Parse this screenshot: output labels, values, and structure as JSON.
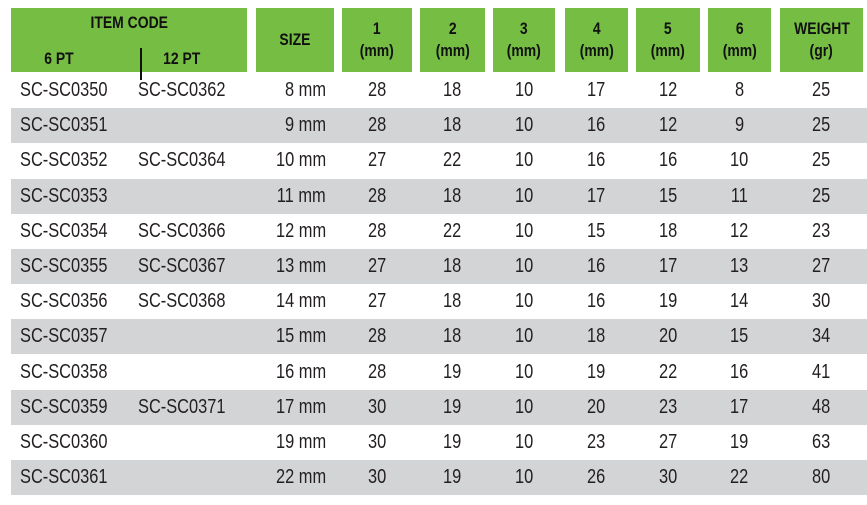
{
  "header": {
    "item_code": "ITEM CODE",
    "pt6": "6 PT",
    "pt12": "12 PT",
    "size": "SIZE",
    "cols": [
      {
        "num": "1",
        "unit": "(mm)"
      },
      {
        "num": "2",
        "unit": "(mm)"
      },
      {
        "num": "3",
        "unit": "(mm)"
      },
      {
        "num": "4",
        "unit": "(mm)"
      },
      {
        "num": "5",
        "unit": "(mm)"
      },
      {
        "num": "6",
        "unit": "(mm)"
      }
    ],
    "weight": "WEIGHT",
    "weight_unit": "(gr)"
  },
  "colors": {
    "header_bg": "#76bd43",
    "alt_row_bg": "#d3d4d6"
  },
  "rows": [
    {
      "pt6": "SC-SC0350",
      "pt12": "SC-SC0362",
      "size": "8 mm",
      "d": [
        "28",
        "18",
        "10",
        "17",
        "12",
        "8"
      ],
      "weight": "25"
    },
    {
      "pt6": "SC-SC0351",
      "pt12": "",
      "size": "9 mm",
      "d": [
        "28",
        "18",
        "10",
        "16",
        "12",
        "9"
      ],
      "weight": "25"
    },
    {
      "pt6": "SC-SC0352",
      "pt12": "SC-SC0364",
      "size": "10 mm",
      "d": [
        "27",
        "22",
        "10",
        "16",
        "16",
        "10"
      ],
      "weight": "25"
    },
    {
      "pt6": "SC-SC0353",
      "pt12": "",
      "size": "11 mm",
      "d": [
        "28",
        "18",
        "10",
        "17",
        "15",
        "11"
      ],
      "weight": "25"
    },
    {
      "pt6": "SC-SC0354",
      "pt12": "SC-SC0366",
      "size": "12 mm",
      "d": [
        "28",
        "22",
        "10",
        "15",
        "18",
        "12"
      ],
      "weight": "23"
    },
    {
      "pt6": "SC-SC0355",
      "pt12": "SC-SC0367",
      "size": "13 mm",
      "d": [
        "27",
        "18",
        "10",
        "16",
        "17",
        "13"
      ],
      "weight": "27"
    },
    {
      "pt6": "SC-SC0356",
      "pt12": "SC-SC0368",
      "size": "14 mm",
      "d": [
        "27",
        "18",
        "10",
        "16",
        "19",
        "14"
      ],
      "weight": "30"
    },
    {
      "pt6": "SC-SC0357",
      "pt12": "",
      "size": "15 mm",
      "d": [
        "28",
        "18",
        "10",
        "18",
        "20",
        "15"
      ],
      "weight": "34"
    },
    {
      "pt6": "SC-SC0358",
      "pt12": "",
      "size": "16 mm",
      "d": [
        "28",
        "19",
        "10",
        "19",
        "22",
        "16"
      ],
      "weight": "41"
    },
    {
      "pt6": "SC-SC0359",
      "pt12": "SC-SC0371",
      "size": "17 mm",
      "d": [
        "30",
        "19",
        "10",
        "20",
        "23",
        "17"
      ],
      "weight": "48"
    },
    {
      "pt6": "SC-SC0360",
      "pt12": "",
      "size": "19 mm",
      "d": [
        "30",
        "19",
        "10",
        "23",
        "27",
        "19"
      ],
      "weight": "63"
    },
    {
      "pt6": "SC-SC0361",
      "pt12": "",
      "size": "22 mm",
      "d": [
        "30",
        "19",
        "10",
        "26",
        "30",
        "22"
      ],
      "weight": "80"
    }
  ]
}
